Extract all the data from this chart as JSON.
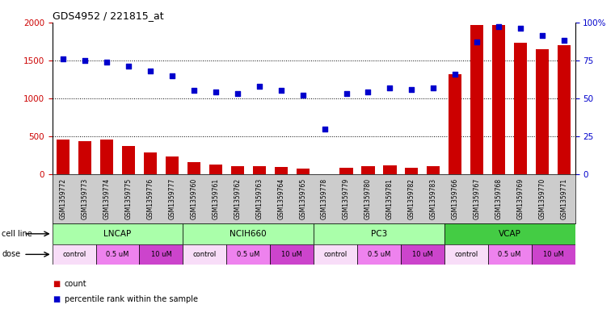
{
  "title": "GDS4952 / 221815_at",
  "samples": [
    "GSM1359772",
    "GSM1359773",
    "GSM1359774",
    "GSM1359775",
    "GSM1359776",
    "GSM1359777",
    "GSM1359760",
    "GSM1359761",
    "GSM1359762",
    "GSM1359763",
    "GSM1359764",
    "GSM1359765",
    "GSM1359778",
    "GSM1359779",
    "GSM1359780",
    "GSM1359781",
    "GSM1359782",
    "GSM1359783",
    "GSM1359766",
    "GSM1359767",
    "GSM1359768",
    "GSM1359769",
    "GSM1359770",
    "GSM1359771"
  ],
  "counts": [
    460,
    440,
    460,
    370,
    290,
    240,
    165,
    125,
    110,
    110,
    95,
    80,
    5,
    85,
    105,
    120,
    90,
    105,
    1320,
    1960,
    1960,
    1730,
    1650,
    1700
  ],
  "percentiles": [
    76,
    75,
    74,
    71,
    68,
    65,
    55,
    54,
    53,
    58,
    55,
    52,
    30,
    53,
    54,
    57,
    56,
    57,
    66,
    87,
    97,
    96,
    91,
    88
  ],
  "cell_lines": [
    "LNCAP",
    "NCIH660",
    "PC3",
    "VCAP"
  ],
  "cell_line_colors": [
    "#aaffaa",
    "#aaffaa",
    "#aaffaa",
    "#44cc44"
  ],
  "dose_labels": [
    "control",
    "0.5 uM",
    "10 uM",
    "control",
    "0.5 uM",
    "10 uM",
    "control",
    "0.5 uM",
    "10 uM",
    "control",
    "0.5 uM",
    "10 uM"
  ],
  "dose_colors": [
    "#f8ddf8",
    "#ee82ee",
    "#cc44cc",
    "#f8ddf8",
    "#ee82ee",
    "#cc44cc",
    "#f8ddf8",
    "#ee82ee",
    "#cc44cc",
    "#f8ddf8",
    "#ee82ee",
    "#cc44cc"
  ],
  "bar_color": "#cc0000",
  "dot_color": "#0000cc",
  "ylim_left": [
    0,
    2000
  ],
  "ylim_right": [
    0,
    100
  ],
  "yticks_left": [
    0,
    500,
    1000,
    1500,
    2000
  ],
  "yticks_right": [
    0,
    25,
    50,
    75,
    100
  ],
  "ytick_labels_right": [
    "0",
    "25",
    "50",
    "75",
    "100%"
  ],
  "grid_values": [
    500,
    1000,
    1500
  ],
  "background_color": "#ffffff",
  "plot_bg": "#ffffff",
  "xticklabel_bg": "#cccccc"
}
